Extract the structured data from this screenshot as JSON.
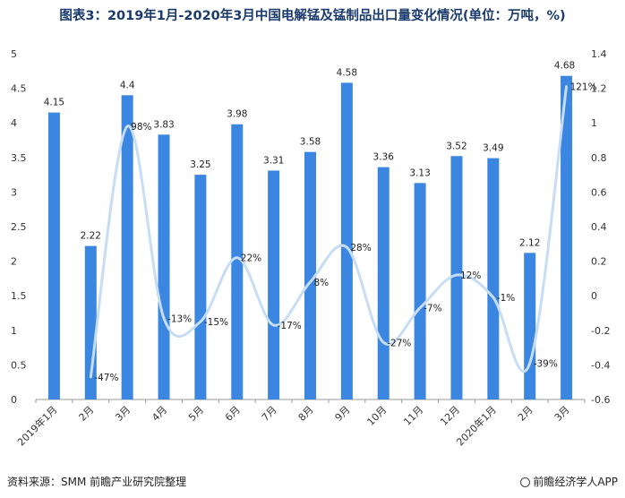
{
  "title": "图表3：2019年1月-2020年3月中国电解锰及锰制品出口量变化情况(单位：万吨，%)",
  "source": "资料来源：SMM 前瞻产业研究院整理",
  "brand": "前瞻经济学人APP",
  "colors": {
    "bar": "#3a86e0",
    "line": "#c7ddf5",
    "axis": "#999999"
  },
  "chart_data": {
    "type": "bar",
    "title": "图表3：2019年1月-2020年3月中国电解锰及锰制品出口量变化情况(单位：万吨，%)",
    "categories": [
      "2019年1月",
      "2月",
      "3月",
      "4月",
      "5月",
      "6月",
      "7月",
      "8月",
      "9月",
      "10月",
      "11月",
      "12月",
      "2020年1月",
      "2月",
      "3月"
    ],
    "series": [
      {
        "type": "bar",
        "axis": "left",
        "values": [
          4.15,
          2.22,
          4.4,
          3.83,
          3.25,
          3.98,
          3.31,
          3.58,
          4.58,
          3.36,
          3.13,
          3.52,
          3.49,
          2.12,
          4.68
        ],
        "labels": [
          "4.15",
          "2.22",
          "4.4",
          "3.83",
          "3.25",
          "3.98",
          "3.31",
          "3.58",
          "4.58",
          "3.36",
          "3.13",
          "3.52",
          "3.49",
          "2.12",
          "4.68"
        ]
      },
      {
        "type": "line",
        "axis": "right",
        "values": [
          null,
          -47,
          98,
          -13,
          -15,
          22,
          -17,
          8,
          28,
          -27,
          -7,
          12,
          -1,
          -39,
          121
        ],
        "labels": [
          "",
          "-47%",
          "98%",
          "-13%",
          "-15%",
          "22%",
          "-17%",
          "8%",
          "28%",
          "-27%",
          "-7%",
          "12%",
          "-1%",
          "-39%",
          "121%"
        ]
      }
    ],
    "y_left": {
      "min": 0,
      "max": 5,
      "ticks": [
        "0",
        "0.5",
        "1",
        "1.5",
        "2",
        "2.5",
        "3",
        "3.5",
        "4",
        "4.5",
        "5"
      ]
    },
    "y_right": {
      "min": -0.6,
      "max": 1.4,
      "ticks": [
        "-0.6",
        "-0.4",
        "-0.2",
        "0",
        "0.2",
        "0.4",
        "0.6",
        "0.8",
        "1",
        "1.2",
        "1.4"
      ]
    },
    "grid": false,
    "legend": "none"
  }
}
